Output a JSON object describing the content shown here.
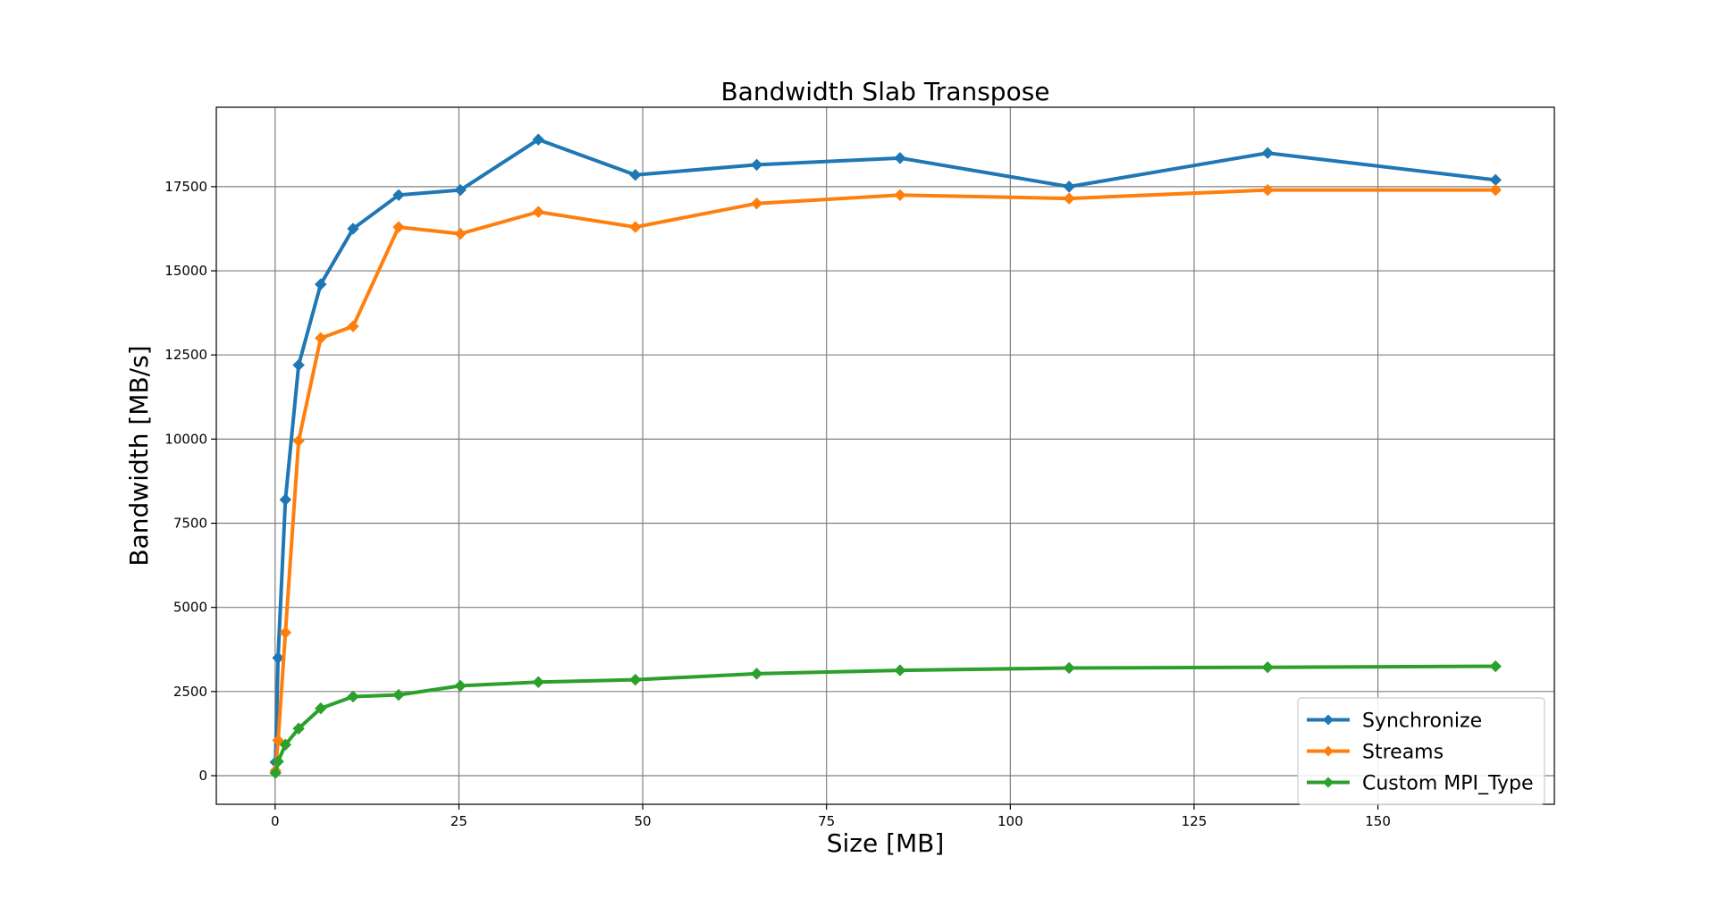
{
  "chart_data": {
    "type": "line",
    "title": "Bandwidth Slab Transpose",
    "xlabel": "Size [MB]",
    "ylabel": "Bandwidth [MB/s]",
    "xlim": [
      -8,
      174
    ],
    "ylim": [
      -850,
      19860
    ],
    "xticks": [
      0,
      25,
      50,
      75,
      100,
      125,
      150
    ],
    "yticks": [
      0,
      2500,
      5000,
      7500,
      10000,
      12500,
      15000,
      17500
    ],
    "grid": true,
    "legend_position": "lower-right",
    "marker": "diamond",
    "series": [
      {
        "name": "Synchronize",
        "color": "#1f77b4",
        "x": [
          0.05,
          0.4,
          1.4,
          3.2,
          6.2,
          10.6,
          16.8,
          25.2,
          35.8,
          49.0,
          65.5,
          85.0,
          108.0,
          135.0,
          166.0
        ],
        "y": [
          400,
          3500,
          8200,
          12200,
          14600,
          16250,
          17250,
          17400,
          18900,
          17850,
          18150,
          18350,
          17500,
          18500,
          17700
        ]
      },
      {
        "name": "Streams",
        "color": "#ff7f0e",
        "x": [
          0.05,
          0.4,
          1.4,
          3.2,
          6.2,
          10.6,
          16.8,
          25.2,
          35.8,
          49.0,
          65.5,
          85.0,
          108.0,
          135.0,
          166.0
        ],
        "y": [
          150,
          1050,
          4250,
          9950,
          13000,
          13350,
          16300,
          16100,
          16750,
          16300,
          17000,
          17250,
          17150,
          17400,
          17400
        ]
      },
      {
        "name": "Custom MPI_Type",
        "color": "#2ca02c",
        "x": [
          0.05,
          0.4,
          1.4,
          3.2,
          6.2,
          10.6,
          16.8,
          25.2,
          35.8,
          49.0,
          65.5,
          85.0,
          108.0,
          135.0,
          166.0
        ],
        "y": [
          80,
          420,
          920,
          1400,
          2000,
          2350,
          2400,
          2670,
          2780,
          2850,
          3030,
          3130,
          3200,
          3220,
          3250
        ]
      }
    ]
  }
}
